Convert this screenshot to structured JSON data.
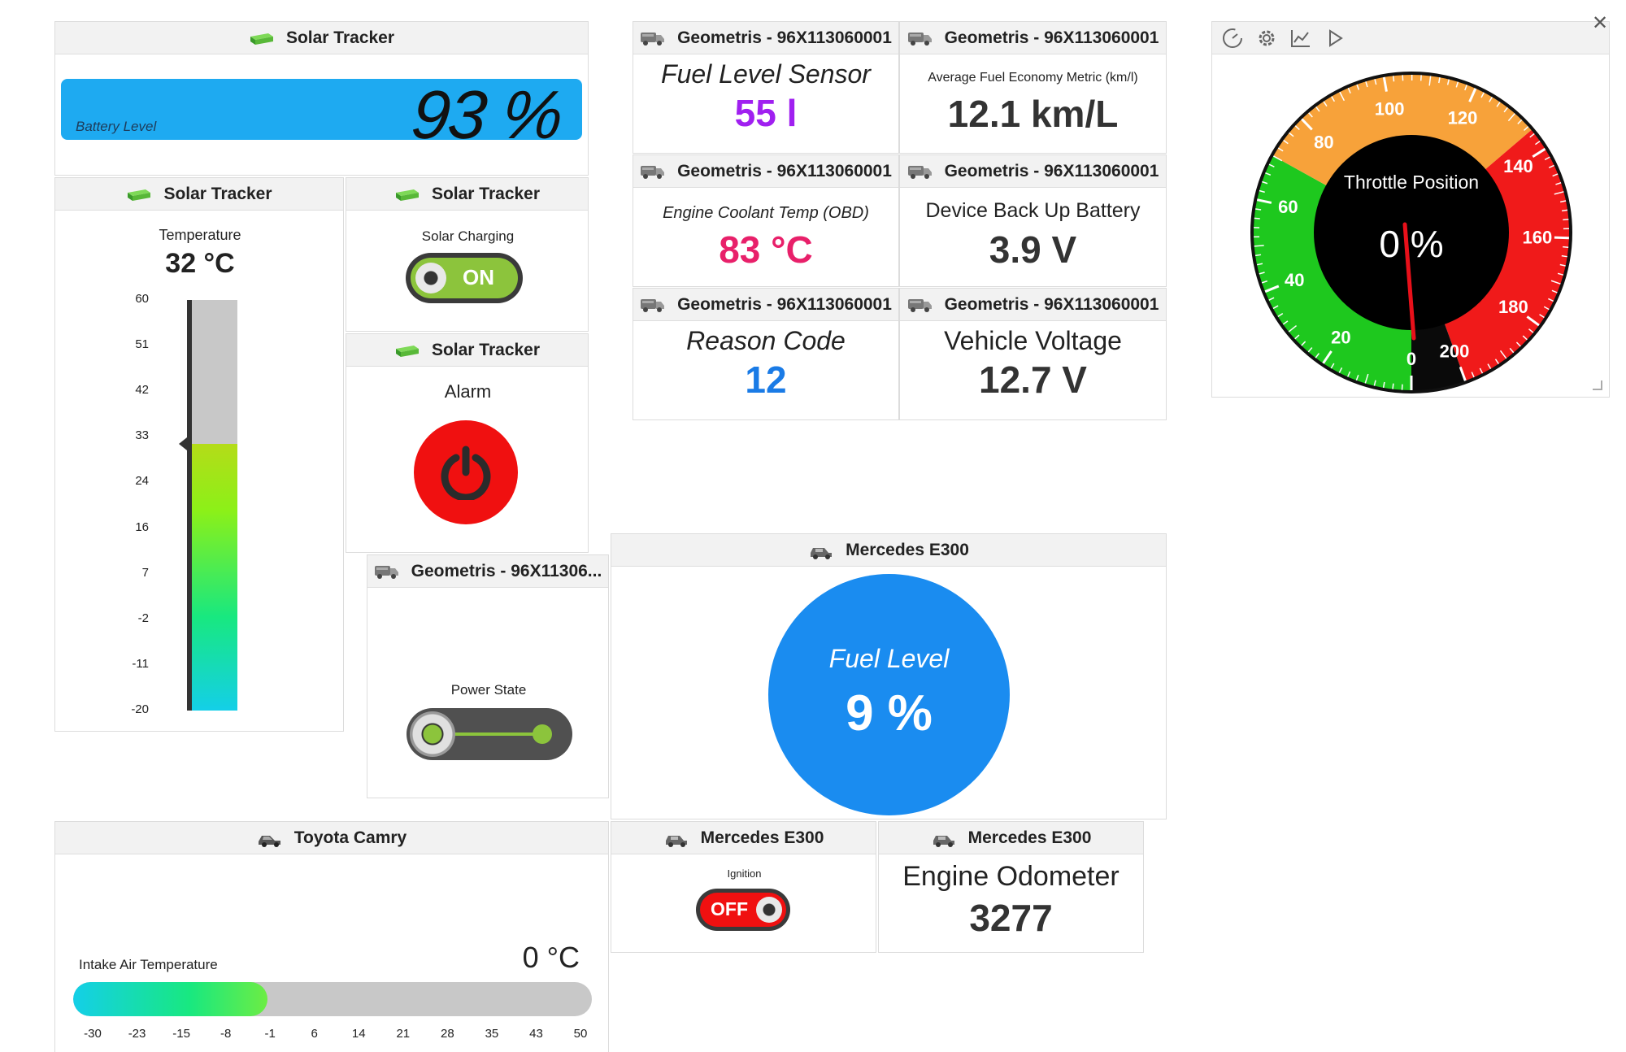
{
  "solar_battery": {
    "title": "Solar Tracker",
    "label": "Battery Level",
    "value": "93 %"
  },
  "solar_temp": {
    "title": "Solar Tracker",
    "label": "Temperature",
    "value": "32 °C",
    "ticks": [
      "60",
      "51",
      "42",
      "33",
      "24",
      "16",
      "7",
      "-2",
      "-11",
      "-20"
    ],
    "level_value": 32,
    "min": -20,
    "max": 60
  },
  "solar_charging": {
    "title": "Solar Tracker",
    "label": "Solar Charging",
    "state": "ON"
  },
  "solar_alarm": {
    "title": "Solar Tracker",
    "label": "Alarm"
  },
  "power_state": {
    "title": "Geometris - 96X11306...",
    "label": "Power State"
  },
  "geo_tiles": {
    "fuel_sensor": {
      "title": "Geometris - 96X113060001",
      "label": "Fuel Level Sensor",
      "value": "55 l"
    },
    "fuel_economy": {
      "title": "Geometris - 96X113060001",
      "label": "Average Fuel Economy Metric (km/l)",
      "value": "12.1 km/L"
    },
    "coolant": {
      "title": "Geometris - 96X113060001",
      "label": "Engine Coolant Temp (OBD)",
      "value": "83 °C"
    },
    "backup_battery": {
      "title": "Geometris - 96X113060001",
      "label": "Device Back Up Battery",
      "value": "3.9 V"
    },
    "reason_code": {
      "title": "Geometris - 96X113060001",
      "label": "Reason Code",
      "value": "12"
    },
    "vehicle_voltage": {
      "title": "Geometris - 96X113060001",
      "label": "Vehicle Voltage",
      "value": "12.7 V"
    }
  },
  "throttle": {
    "label": "Throttle Position",
    "value": "0 %",
    "scale": [
      "0",
      "20",
      "40",
      "60",
      "80",
      "100",
      "120",
      "140",
      "160",
      "180",
      "200"
    ],
    "needle_value": 0,
    "toolbar": [
      "gauge-icon",
      "gear-icon",
      "chart-icon",
      "play-icon"
    ]
  },
  "mercedes_fuel": {
    "title": "Mercedes E300",
    "label": "Fuel Level",
    "value": "9 %",
    "color": "#1a8cf0"
  },
  "toyota_intake": {
    "title": "Toyota Camry",
    "label": "Intake Air Temperature",
    "value": "0 °C",
    "ticks": [
      "-30",
      "-23",
      "-15",
      "-8",
      "-1",
      "6",
      "14",
      "21",
      "28",
      "35",
      "43",
      "50"
    ],
    "level_value": 0,
    "min": -30,
    "max": 50
  },
  "mercedes_ignition": {
    "title": "Mercedes E300",
    "label": "Ignition",
    "state": "OFF"
  },
  "mercedes_odometer": {
    "title": "Mercedes E300",
    "label": "Engine Odometer",
    "value": "3277"
  },
  "colors": {
    "battery_bar": "#1eaaf1",
    "fuel_sensor_value": "#a020f0",
    "coolant_value": "#e8206a",
    "reason_value": "#1a7be6",
    "alarm_red": "#f01010",
    "gauge_green": "#1ec81e",
    "gauge_orange": "#f7a23a",
    "gauge_red": "#f01a1a",
    "toggle_green": "#8cc43c"
  }
}
